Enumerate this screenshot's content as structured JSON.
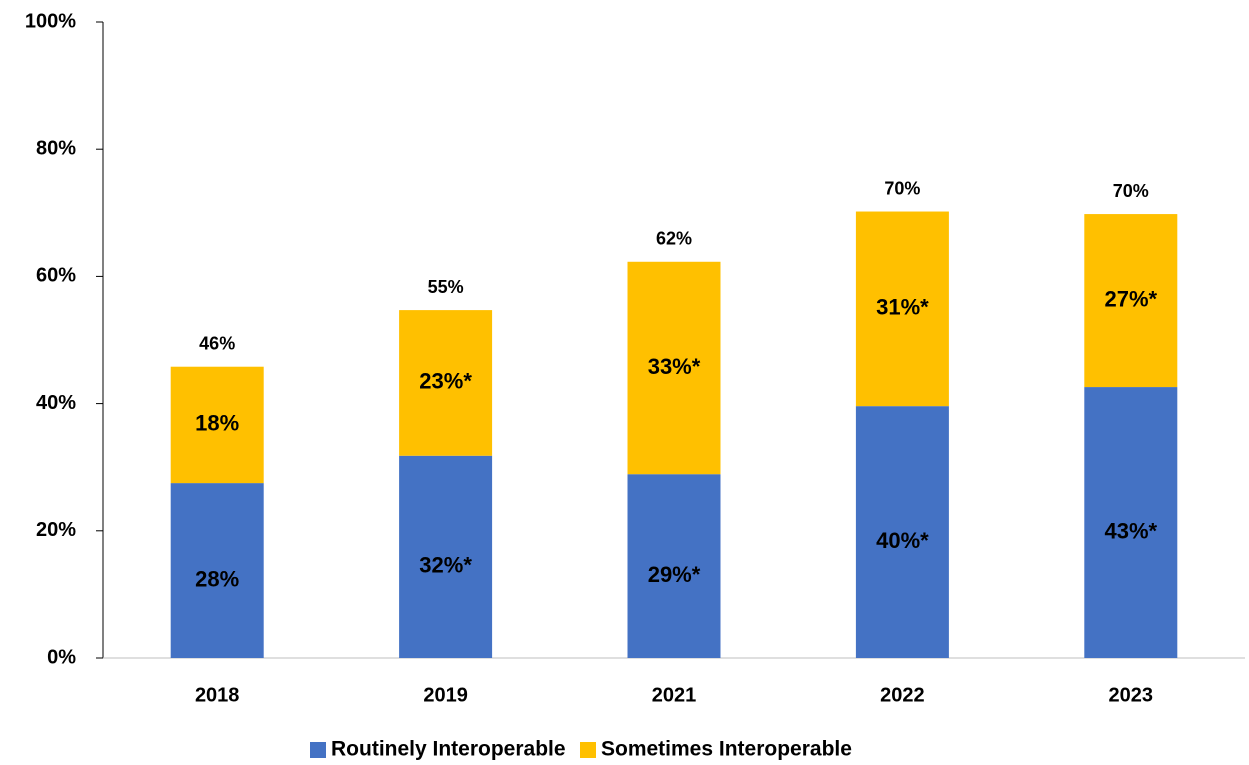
{
  "chart_data": {
    "type": "stacked_bar",
    "categories": [
      "2018",
      "2019",
      "2021",
      "2022",
      "2023"
    ],
    "series": [
      {
        "name": "Routinely Interoperable",
        "color": "#4472c4",
        "values": [
          27.5,
          31.8,
          28.9,
          39.6,
          42.6
        ],
        "value_labels": [
          "28%",
          "32%*",
          "29%*",
          "40%*",
          "43%*"
        ],
        "label_color": "#ffffff"
      },
      {
        "name": "Sometimes Interoperable",
        "color": "#ffc000",
        "values": [
          18.3,
          22.9,
          33.4,
          30.6,
          27.2
        ],
        "value_labels": [
          "18%",
          "23%*",
          "33%*",
          "31%*",
          "27%*"
        ],
        "label_color": "#000000"
      }
    ],
    "totals": [
      45.8,
      54.7,
      62.3,
      70.2,
      69.8
    ],
    "total_labels": [
      "46%",
      "55%",
      "62%",
      "70%",
      "70%"
    ],
    "ylim": [
      0,
      100
    ],
    "yticks": [
      {
        "value": 0,
        "label": "0%"
      },
      {
        "value": 20,
        "label": "20%"
      },
      {
        "value": 40,
        "label": "40%"
      },
      {
        "value": 60,
        "label": "60%"
      },
      {
        "value": 80,
        "label": "80%"
      },
      {
        "value": 100,
        "label": "100%"
      }
    ],
    "grid": false,
    "legend": "bottom"
  }
}
